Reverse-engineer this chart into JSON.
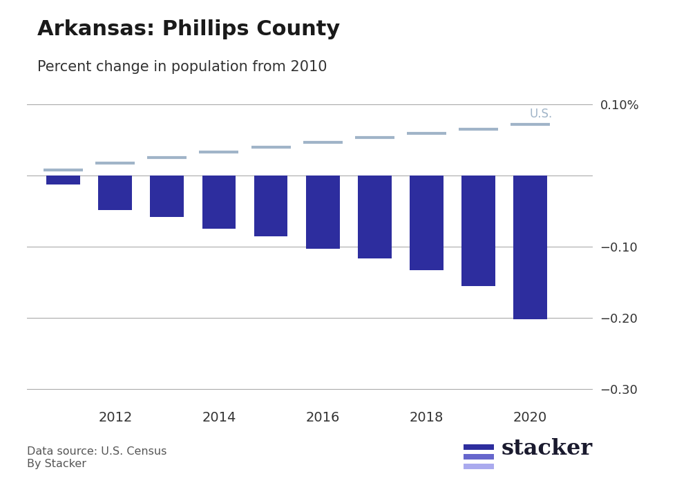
{
  "title": "Arkansas: Phillips County",
  "subtitle": "Percent change in population from 2010",
  "bar_years": [
    2011,
    2012,
    2013,
    2014,
    2015,
    2016,
    2017,
    2018,
    2019,
    2020
  ],
  "bar_values": [
    -0.012,
    -0.048,
    -0.058,
    -0.075,
    -0.085,
    -0.103,
    -0.116,
    -0.133,
    -0.155,
    -0.2019
  ],
  "us_years": [
    2011,
    2012,
    2013,
    2014,
    2015,
    2016,
    2017,
    2018,
    2019,
    2020
  ],
  "us_values": [
    0.008,
    0.018,
    0.026,
    0.033,
    0.04,
    0.047,
    0.054,
    0.06,
    0.065,
    0.072
  ],
  "bar_color": "#2D2D9E",
  "us_line_color": "#A0B4C8",
  "us_label": "U.S.",
  "ylim": [
    -0.32,
    0.135
  ],
  "yticks": [
    0.1,
    0.0,
    -0.1,
    -0.2,
    -0.3
  ],
  "ytick_labels": [
    "0.10%",
    "",
    "−0.10",
    "−0.20",
    "−0.30"
  ],
  "xticks": [
    2012,
    2014,
    2016,
    2018,
    2020
  ],
  "data_source": "Data source: U.S. Census",
  "by_line": "By Stacker",
  "background_color": "#FFFFFF",
  "grid_color": "#AAAAAA",
  "bar_width": 0.65,
  "stacker_text_color": "#1a1a2e",
  "stacker_bar_colors": [
    "#2D2D9E",
    "#6666CC",
    "#AAAAEE"
  ]
}
